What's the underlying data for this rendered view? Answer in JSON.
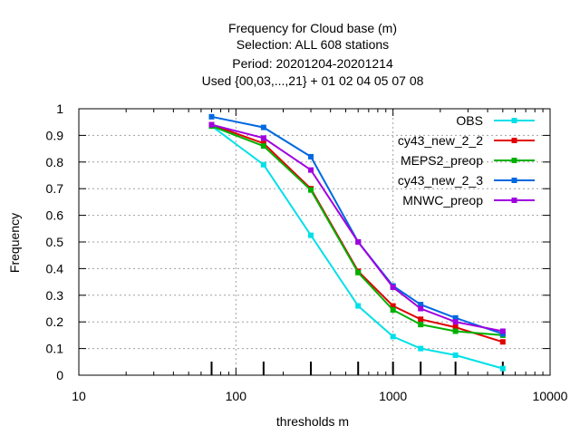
{
  "chart_data": {
    "type": "line",
    "title_lines": [
      "Frequency  for Cloud base (m)",
      "Selection: ALL    608 stations",
      "Period: 20201204-20201214",
      "Used {00,03,...,21} + 01 02 04 05 07 08"
    ],
    "xlabel": "thresholds m",
    "ylabel": "Frequency",
    "xscale": "log",
    "xlim": [
      10,
      10000
    ],
    "ylim": [
      0,
      1
    ],
    "x_ticks": [
      10,
      100,
      1000,
      10000
    ],
    "x_tick_labels": [
      "10",
      "100",
      "1000",
      "10000"
    ],
    "y_ticks": [
      0,
      0.1,
      0.2,
      0.3,
      0.4,
      0.5,
      0.6,
      0.7,
      0.8,
      0.9,
      1
    ],
    "y_tick_labels": [
      "0",
      "0.1",
      "0.2",
      "0.3",
      "0.4",
      "0.5",
      "0.6",
      "0.7",
      "0.8",
      "0.9",
      "1"
    ],
    "grid": true,
    "legend_position": "top-right",
    "x": [
      70,
      150,
      300,
      600,
      1000,
      1500,
      2500,
      5000
    ],
    "series": [
      {
        "name": "OBS",
        "color": "#00e0e8",
        "values": [
          0.935,
          0.79,
          0.525,
          0.26,
          0.145,
          0.1,
          0.075,
          0.025
        ]
      },
      {
        "name": "cy43_new_2_2",
        "color": "#e00000",
        "values": [
          0.94,
          0.87,
          0.7,
          0.39,
          0.26,
          0.21,
          0.18,
          0.125
        ]
      },
      {
        "name": "MEPS2_preop",
        "color": "#00b000",
        "values": [
          0.935,
          0.86,
          0.695,
          0.385,
          0.245,
          0.19,
          0.165,
          0.15
        ]
      },
      {
        "name": "cy43_new_2_3",
        "color": "#0068e0",
        "values": [
          0.97,
          0.93,
          0.82,
          0.5,
          0.335,
          0.265,
          0.215,
          0.155
        ]
      },
      {
        "name": "MNWC_preop",
        "color": "#a000e0",
        "values": [
          0.94,
          0.89,
          0.77,
          0.5,
          0.33,
          0.25,
          0.2,
          0.165
        ]
      }
    ]
  }
}
